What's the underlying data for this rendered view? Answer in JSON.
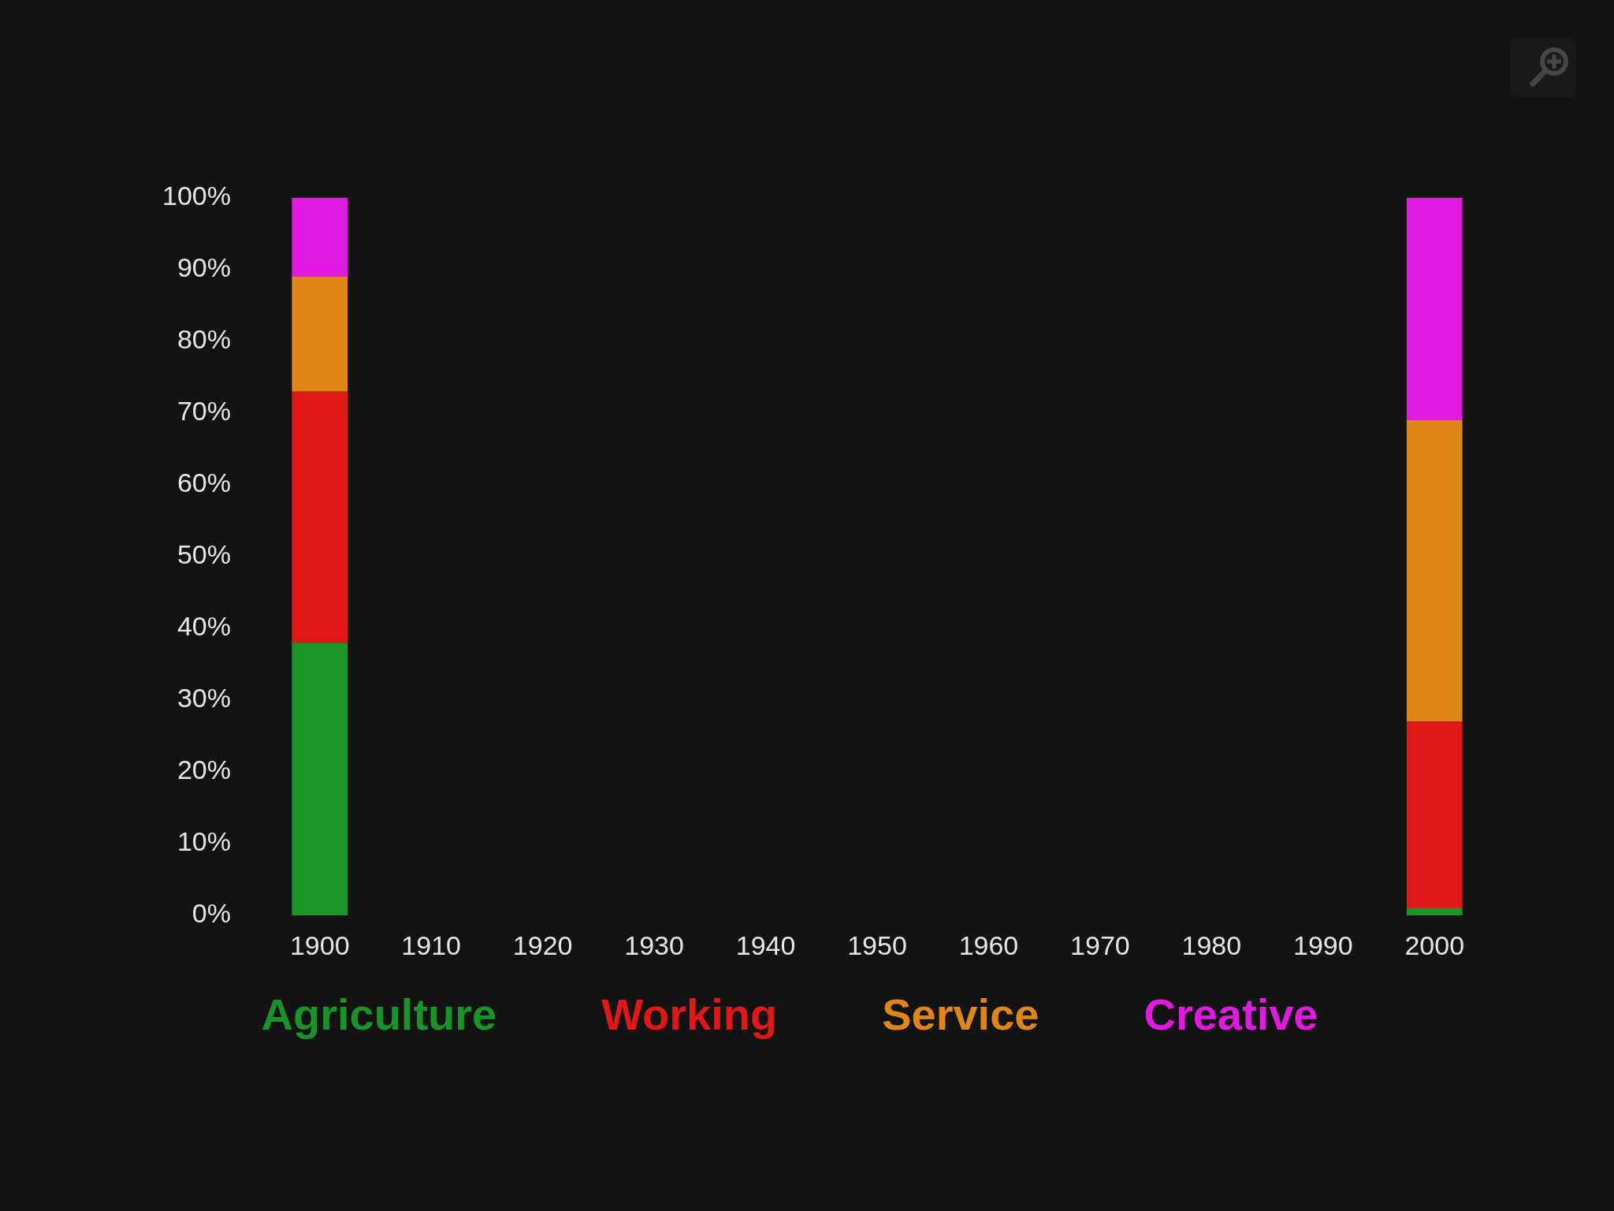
{
  "chart_data": {
    "type": "bar",
    "stacked": true,
    "categories": [
      "1900",
      "1910",
      "1920",
      "1930",
      "1940",
      "1950",
      "1960",
      "1970",
      "1980",
      "1990",
      "2000"
    ],
    "series": [
      {
        "name": "Agriculture",
        "color": "#1a9329",
        "values": [
          38,
          null,
          null,
          null,
          null,
          null,
          null,
          null,
          null,
          null,
          1
        ]
      },
      {
        "name": "Working",
        "color": "#e01818",
        "values": [
          35,
          null,
          null,
          null,
          null,
          null,
          null,
          null,
          null,
          null,
          26
        ]
      },
      {
        "name": "Service",
        "color": "#e08518",
        "values": [
          16,
          null,
          null,
          null,
          null,
          null,
          null,
          null,
          null,
          null,
          42
        ]
      },
      {
        "name": "Creative",
        "color": "#e01adf",
        "values": [
          11,
          null,
          null,
          null,
          null,
          null,
          null,
          null,
          null,
          null,
          31
        ]
      }
    ],
    "ylim": [
      0,
      100
    ],
    "yticks": [
      {
        "value": 0,
        "label": "0%"
      },
      {
        "value": 10,
        "label": "10%"
      },
      {
        "value": 20,
        "label": "20%"
      },
      {
        "value": 30,
        "label": "30%"
      },
      {
        "value": 40,
        "label": "40%"
      },
      {
        "value": 50,
        "label": "50%"
      },
      {
        "value": 60,
        "label": "60%"
      },
      {
        "value": 70,
        "label": "70%"
      },
      {
        "value": 80,
        "label": "80%"
      },
      {
        "value": 90,
        "label": "90%"
      },
      {
        "value": 100,
        "label": "100%"
      }
    ],
    "grid": false,
    "legend": "bottom"
  }
}
